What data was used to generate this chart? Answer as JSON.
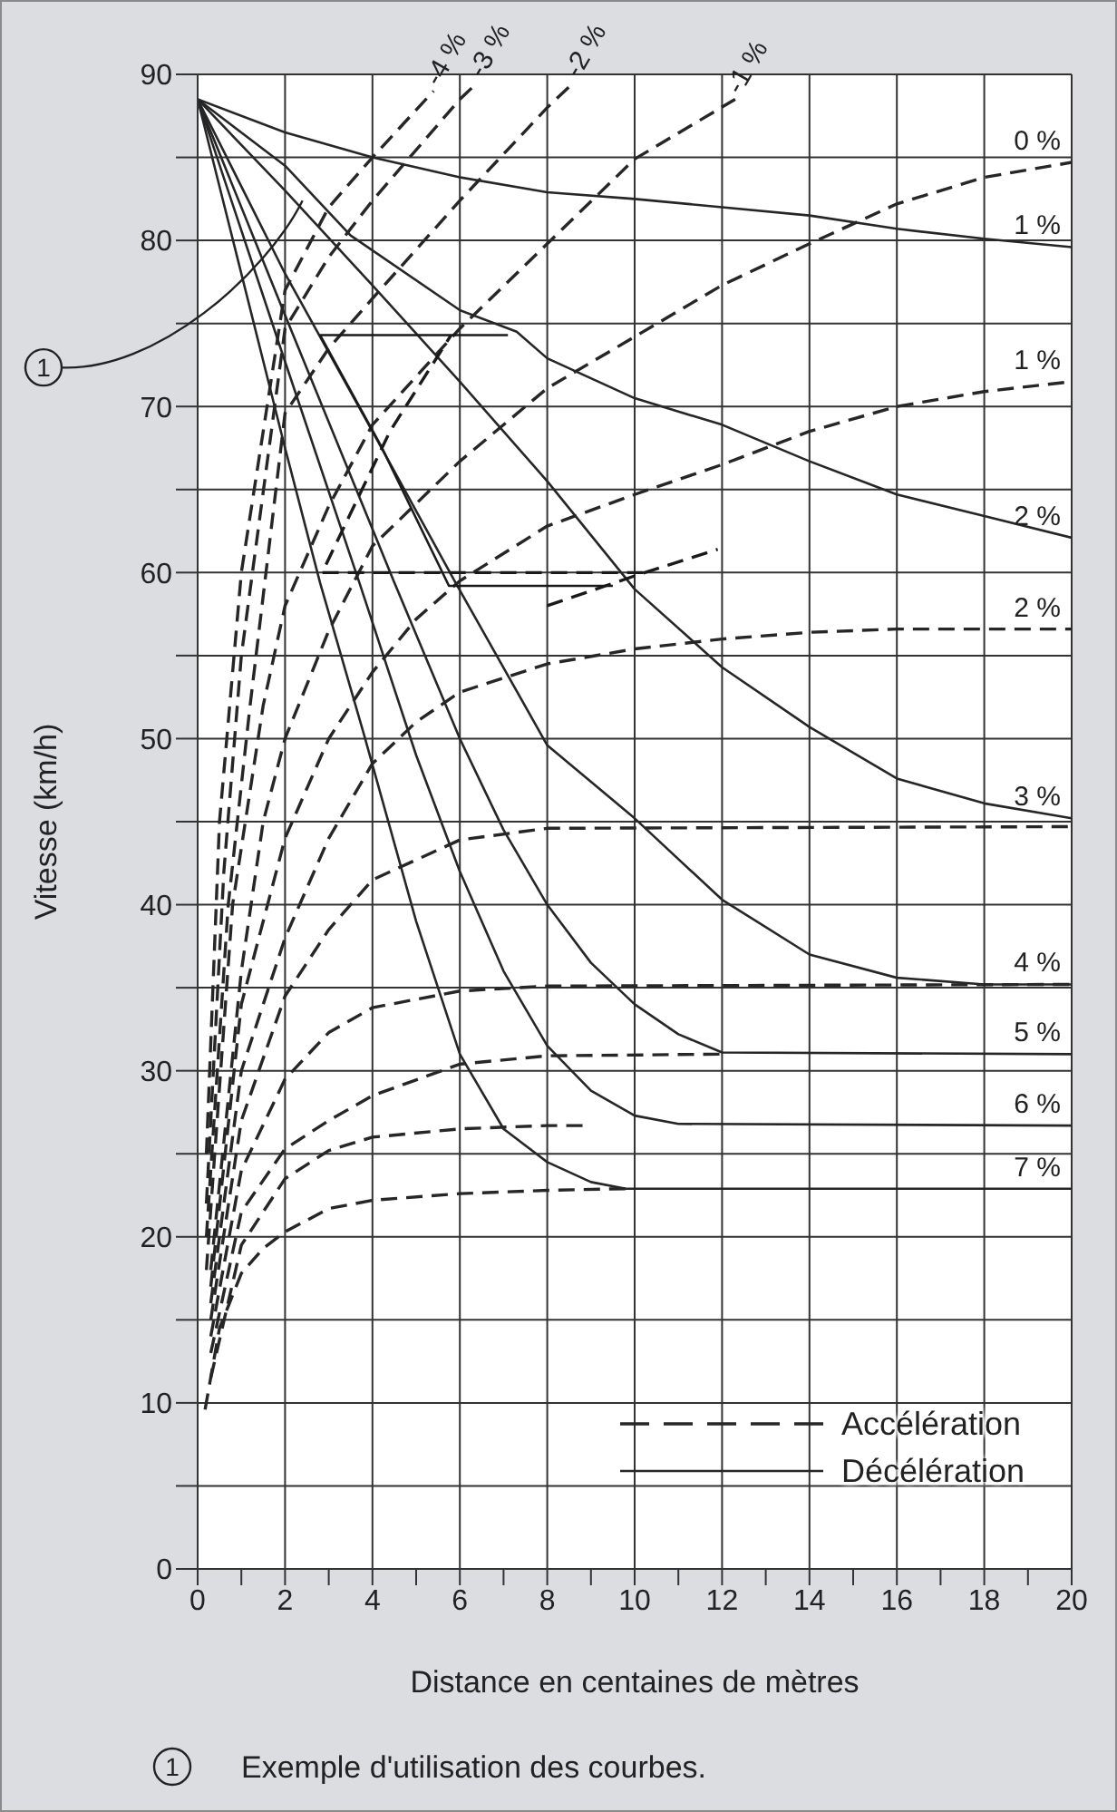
{
  "chart_data": {
    "type": "line",
    "xlabel": "Distance en centaines de mètres",
    "ylabel": "Vitesse (km/h)",
    "xlim": [
      0,
      20
    ],
    "ylim": [
      0,
      90
    ],
    "xticks": [
      0,
      {
        "value": 1,
        "label": null
      },
      2,
      {
        "value": 3,
        "label": null
      },
      4,
      {
        "value": 5,
        "label": null
      },
      6,
      {
        "value": 7,
        "label": null
      },
      8,
      {
        "value": 9,
        "label": null
      },
      10,
      {
        "value": 11,
        "label": null
      },
      12,
      {
        "value": 13,
        "label": null
      },
      14,
      {
        "value": 15,
        "label": null
      },
      16,
      {
        "value": 17,
        "label": null
      },
      18,
      {
        "value": 19,
        "label": null
      },
      20
    ],
    "yticks": [
      0,
      {
        "value": 5,
        "label": null
      },
      10,
      {
        "value": 15,
        "label": null
      },
      20,
      {
        "value": 25,
        "label": null
      },
      30,
      {
        "value": 35,
        "label": null
      },
      40,
      {
        "value": 45,
        "label": null
      },
      50,
      {
        "value": 55,
        "label": null
      },
      60,
      {
        "value": 65,
        "label": null
      },
      70,
      {
        "value": 75,
        "label": null
      },
      80,
      {
        "value": 85,
        "label": null
      },
      90
    ],
    "grid": true,
    "marker": "none",
    "annotations": [
      {
        "text": "1",
        "x": 2.4,
        "y": 82.4
      },
      "Accélération",
      "Décélération",
      "Exemple d'utilisation des courbes."
    ],
    "series": [
      {
        "name": "1 %",
        "color": "#262626",
        "line_style": "solid",
        "x": [
          0,
          2,
          4,
          6,
          8,
          10,
          12,
          14,
          16,
          18,
          20
        ],
        "values": [
          88.5,
          86.5,
          85,
          83.8,
          82.9,
          82.5,
          82,
          81.5,
          80.7,
          80.1,
          79.6
        ]
      },
      {
        "name": "2 %",
        "color": "#262626",
        "line_style": "solid",
        "x": [
          0,
          2,
          3.5,
          6,
          7.3,
          8,
          10,
          12,
          14,
          16,
          18,
          20
        ],
        "values": [
          88.5,
          84.5,
          80.3,
          75.8,
          74.5,
          72.9,
          70.5,
          68.9,
          66.7,
          64.7,
          63.4,
          62.1
        ]
      },
      {
        "name": "3 %",
        "color": "#262626",
        "line_style": "solid",
        "x": [
          0,
          2,
          4,
          6,
          8,
          10,
          12,
          14,
          16,
          18,
          20
        ],
        "values": [
          88.5,
          83,
          77.3,
          71.5,
          65.5,
          59,
          54.3,
          50.7,
          47.6,
          46.1,
          45.2
        ]
      },
      {
        "name": "4 %",
        "color": "#262626",
        "line_style": "solid",
        "x": [
          0,
          2,
          4,
          5.9,
          8,
          10,
          12,
          14,
          16,
          18,
          20
        ],
        "values": [
          88.5,
          78,
          68.5,
          59.4,
          49.6,
          45.2,
          40.3,
          37,
          35.6,
          35.2,
          35.2
        ]
      },
      {
        "name": "5 %",
        "color": "#262626",
        "line_style": "solid",
        "x": [
          0,
          2,
          4.5,
          6,
          7,
          8,
          9,
          10,
          11,
          12,
          20
        ],
        "values": [
          88.5,
          75.5,
          59.4,
          50,
          44.5,
          40,
          36.5,
          34,
          32.2,
          31.1,
          31
        ]
      },
      {
        "name": "6 %",
        "color": "#262626",
        "line_style": "solid",
        "x": [
          0,
          2,
          3.7,
          5,
          6,
          7,
          8,
          9,
          10,
          11,
          20
        ],
        "values": [
          88.5,
          72.7,
          59.4,
          49,
          42,
          36,
          31.5,
          28.8,
          27.3,
          26.8,
          26.7
        ]
      },
      {
        "name": "7 %",
        "color": "#262626",
        "line_style": "solid",
        "x": [
          0,
          2,
          2.8,
          3.8,
          5,
          6,
          7,
          8,
          9,
          9.8,
          20
        ],
        "values": [
          88.5,
          67.5,
          59.4,
          50.3,
          39,
          31,
          26.5,
          24.5,
          23.3,
          22.9,
          22.9
        ]
      },
      {
        "name": "-4 %",
        "color": "#262626",
        "line_style": "dashed",
        "x": [
          0.2,
          0.5,
          1,
          2,
          3,
          4,
          5.4
        ],
        "values": [
          25,
          45,
          60,
          77,
          82,
          85,
          89
        ]
      },
      {
        "name": "-3 %",
        "color": "#262626",
        "line_style": "dashed",
        "x": [
          0.2,
          0.6,
          1,
          2,
          3,
          4,
          6,
          6.4
        ],
        "values": [
          22,
          42,
          55,
          74.7,
          79,
          82.4,
          88.5,
          89.5
        ]
      },
      {
        "name": "-2 %",
        "color": "#262626",
        "line_style": "dashed",
        "x": [
          0.2,
          0.7,
          1.2,
          2,
          3,
          4,
          6,
          8,
          8.6
        ],
        "values": [
          20,
          40,
          52,
          69.6,
          73.5,
          76.5,
          82.4,
          88,
          89.5
        ]
      },
      {
        "name": "-1 %",
        "color": "#262626",
        "line_style": "dashed",
        "x": [
          0.2,
          0.8,
          1.5,
          2,
          3,
          4,
          6,
          8,
          10,
          12.3
        ],
        "values": [
          18,
          40,
          52,
          58,
          64,
          68.9,
          74.7,
          79.8,
          84.9,
          88.5
        ]
      },
      {
        "name": "0 %",
        "color": "#262626",
        "line_style": "dashed",
        "x": [
          0.3,
          1,
          1.5,
          2,
          3,
          4,
          6,
          8,
          10,
          12,
          14,
          16,
          18,
          20
        ],
        "values": [
          18,
          36,
          45,
          50,
          56.5,
          61.6,
          66.7,
          71.1,
          74.2,
          77.3,
          79.8,
          82.2,
          83.8,
          84.7
        ]
      },
      {
        "name": "1 %",
        "color": "#262626",
        "line_style": "dashed",
        "x": [
          0.3,
          1,
          2,
          3,
          4,
          5,
          6,
          8,
          10,
          12,
          14,
          16,
          18,
          20
        ],
        "values": [
          17,
          34,
          44,
          50,
          54,
          57.2,
          59.5,
          62.8,
          64.7,
          66.5,
          68.5,
          70,
          70.9,
          71.5
        ]
      },
      {
        "name": "2 %",
        "color": "#262626",
        "line_style": "dashed",
        "x": [
          0.3,
          1,
          2,
          3,
          4,
          5,
          6,
          8,
          10,
          12,
          14,
          16,
          20
        ],
        "values": [
          16,
          30,
          38,
          44,
          48.5,
          51,
          52.8,
          54.5,
          55.4,
          56,
          56.4,
          56.6,
          56.6
        ]
      },
      {
        "color": "#262626",
        "line_style": "dashed",
        "x": [
          0.3,
          1,
          2,
          3,
          4,
          6,
          8,
          20
        ],
        "values": [
          15,
          27,
          34.5,
          38.5,
          41.5,
          43.9,
          44.6,
          44.7
        ]
      },
      {
        "color": "#262626",
        "line_style": "dashed",
        "x": [
          0.3,
          1,
          2,
          3,
          4,
          6,
          8,
          20
        ],
        "values": [
          14,
          24,
          29.5,
          32.3,
          33.8,
          34.8,
          35.1,
          35.2
        ]
      },
      {
        "color": "#262626",
        "line_style": "dashed",
        "x": [
          0.3,
          1,
          2,
          3,
          4,
          6,
          8,
          12
        ],
        "values": [
          13,
          21.5,
          25.3,
          27,
          28.5,
          30.4,
          30.9,
          31
        ]
      },
      {
        "color": "#262626",
        "line_style": "dashed",
        "x": [
          0.3,
          1,
          2,
          3,
          4,
          6,
          8,
          9
        ],
        "values": [
          11.5,
          19.5,
          23.5,
          25.2,
          26,
          26.5,
          26.7,
          26.7
        ]
      },
      {
        "color": "#262626",
        "line_style": "dashed",
        "x": [
          0.17,
          0.5,
          1,
          1.5,
          2,
          3,
          4,
          6,
          8,
          9.8
        ],
        "values": [
          9.6,
          14.5,
          17.8,
          19.3,
          20.3,
          21.7,
          22.2,
          22.6,
          22.8,
          22.9
        ]
      },
      {
        "color": "#1a1a1a",
        "line_style": "solid",
        "x": [
          7.1,
          2.8,
          4.2,
          5.75,
          9.5
        ],
        "values": [
          74.3,
          74.3,
          67.6,
          59.2,
          59.2
        ]
      },
      {
        "color": "#1a1a1a",
        "line_style": "dashed",
        "x": [
          10.2,
          2.85,
          4.4,
          5.8
        ],
        "values": [
          60,
          60,
          68.5,
          74.3
        ]
      },
      {
        "color": "#1a1a1a",
        "line_style": "dashed",
        "x": [
          8,
          10,
          11.9
        ],
        "values": [
          58,
          59.8,
          61.4
        ]
      }
    ]
  }
}
